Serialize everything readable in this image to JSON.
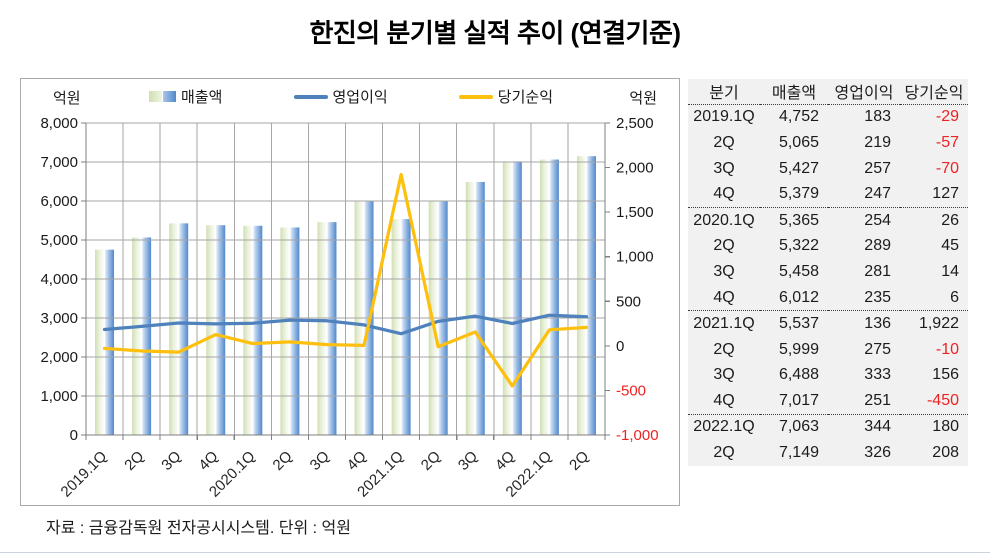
{
  "title": "한진의 분기별 실적 추이 (연결기준)",
  "chart_data": {
    "type": "combo bar+line",
    "categories": [
      "2019.1Q",
      "2Q",
      "3Q",
      "4Q",
      "2020.1Q",
      "2Q",
      "3Q",
      "4Q",
      "2021.1Q",
      "2Q",
      "3Q",
      "4Q",
      "2022.1Q",
      "2Q"
    ],
    "series": [
      {
        "name": "매출액",
        "type": "bar",
        "axis": "left",
        "values": [
          4752,
          5065,
          5427,
          5379,
          5365,
          5322,
          5458,
          6012,
          5537,
          5999,
          6488,
          7017,
          7063,
          7149
        ],
        "bar_colors": {
          "pale_start": "#cfdfb2",
          "pale_end": "#fdfefb",
          "blue_start": "#e6eefa",
          "blue_mid": "#aac7e9",
          "blue_end": "#5288cb"
        }
      },
      {
        "name": "영업이익",
        "type": "line",
        "axis": "right",
        "color": "#4f81bd",
        "values": [
          183,
          219,
          257,
          247,
          254,
          289,
          281,
          235,
          136,
          275,
          333,
          251,
          344,
          326
        ]
      },
      {
        "name": "당기순익",
        "type": "line",
        "axis": "right",
        "color": "#fdc00f",
        "values": [
          -29,
          -57,
          -70,
          127,
          26,
          45,
          14,
          6,
          1922,
          -10,
          156,
          -450,
          180,
          208
        ]
      }
    ],
    "left_axis": {
      "unit": "억원",
      "min": 0,
      "max": 8000,
      "step": 1000
    },
    "right_axis": {
      "unit": "억원",
      "min": -1000,
      "max": 2500,
      "step": 500,
      "negative_color": "#ee2222"
    },
    "legend_position": "top",
    "grid": true,
    "gridline_color": "#a6a6a6",
    "axis_color": "#7f7f7f"
  },
  "table": {
    "headers": [
      "분기",
      "매출액",
      "영업이익",
      "당기순익"
    ],
    "rows": [
      {
        "quarter": "2019.1Q",
        "sales": "4,752",
        "op": "183",
        "net": "-29",
        "group_start": false
      },
      {
        "quarter": "2Q",
        "sales": "5,065",
        "op": "219",
        "net": "-57",
        "group_start": false
      },
      {
        "quarter": "3Q",
        "sales": "5,427",
        "op": "257",
        "net": "-70",
        "group_start": false
      },
      {
        "quarter": "4Q",
        "sales": "5,379",
        "op": "247",
        "net": "127",
        "group_start": false
      },
      {
        "quarter": "2020.1Q",
        "sales": "5,365",
        "op": "254",
        "net": "26",
        "group_start": true
      },
      {
        "quarter": "2Q",
        "sales": "5,322",
        "op": "289",
        "net": "45",
        "group_start": false
      },
      {
        "quarter": "3Q",
        "sales": "5,458",
        "op": "281",
        "net": "14",
        "group_start": false
      },
      {
        "quarter": "4Q",
        "sales": "6,012",
        "op": "235",
        "net": "6",
        "group_start": false
      },
      {
        "quarter": "2021.1Q",
        "sales": "5,537",
        "op": "136",
        "net": "1,922",
        "group_start": true
      },
      {
        "quarter": "2Q",
        "sales": "5,999",
        "op": "275",
        "net": "-10",
        "group_start": false
      },
      {
        "quarter": "3Q",
        "sales": "6,488",
        "op": "333",
        "net": "156",
        "group_start": false
      },
      {
        "quarter": "4Q",
        "sales": "7,017",
        "op": "251",
        "net": "-450",
        "group_start": false
      },
      {
        "quarter": "2022.1Q",
        "sales": "7,063",
        "op": "344",
        "net": "180",
        "group_start": true
      },
      {
        "quarter": "2Q",
        "sales": "7,149",
        "op": "326",
        "net": "208",
        "group_start": false
      }
    ]
  },
  "footer": {
    "text": "자료 : 금융감독원 전자공시시스템. 단위 : 억원"
  }
}
